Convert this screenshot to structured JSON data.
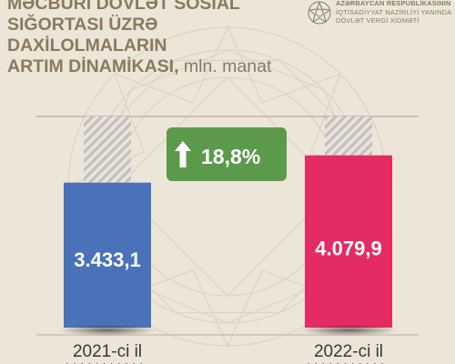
{
  "header": {
    "title_lines": [
      "MƏCBURİ DÖVLƏT SOSİAL",
      "SIĞORTASI ÜZRƏ DAXİLOLMALARIN",
      "ARTIM DİNAMİKASI,"
    ],
    "unit": "mln. manat"
  },
  "org": {
    "lines": [
      "AZƏRBAYCAN RESPUBLİKASININ",
      "İQTİSADİYYAT NAZİRLİYİ YANINDA",
      "DÖVLƏT VERGİ XİDMƏTİ"
    ]
  },
  "colors": {
    "background": "#ece6d9",
    "bar_2021": "#4a72b8",
    "bar_2022": "#e52b63",
    "growth_badge": "#5b9a4a",
    "text_brand": "#8a7a5c"
  },
  "chart_data": {
    "type": "bar",
    "categories": [
      "2021-ci il",
      "2022-ci il"
    ],
    "values": [
      3433.1,
      4079.9
    ],
    "value_labels": [
      "3.433,1",
      "4.079,9"
    ],
    "colors": [
      "#4a72b8",
      "#e52b63"
    ],
    "growth_label": "18,8%",
    "growth_icon": "arrow-up-icon",
    "ylim": [
      0,
      5000
    ],
    "grid": false,
    "legend": "none"
  }
}
